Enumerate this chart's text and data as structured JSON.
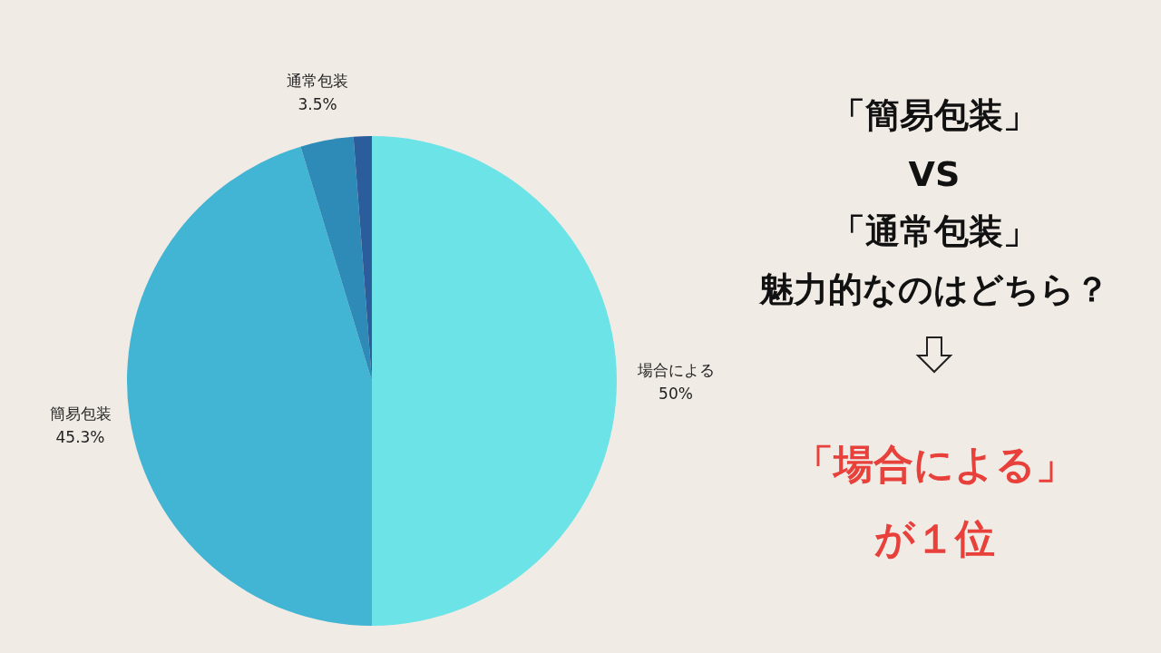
{
  "chart_data": {
    "type": "pie",
    "title": "「簡易包装」VS「通常包装」魅力的なのはどちら？",
    "categories": [
      "場合による",
      "簡易包装",
      "通常包装",
      null
    ],
    "values": [
      50,
      45.3,
      3.5,
      1.2
    ],
    "value_labels": [
      "50%",
      "45.3%",
      "3.5%",
      null
    ],
    "colors": [
      "#6ce3e6",
      "#42b4d4",
      "#2e8bb8",
      "#2b5c9c"
    ],
    "annotations": [
      "「場合による」が１位"
    ]
  }
}
